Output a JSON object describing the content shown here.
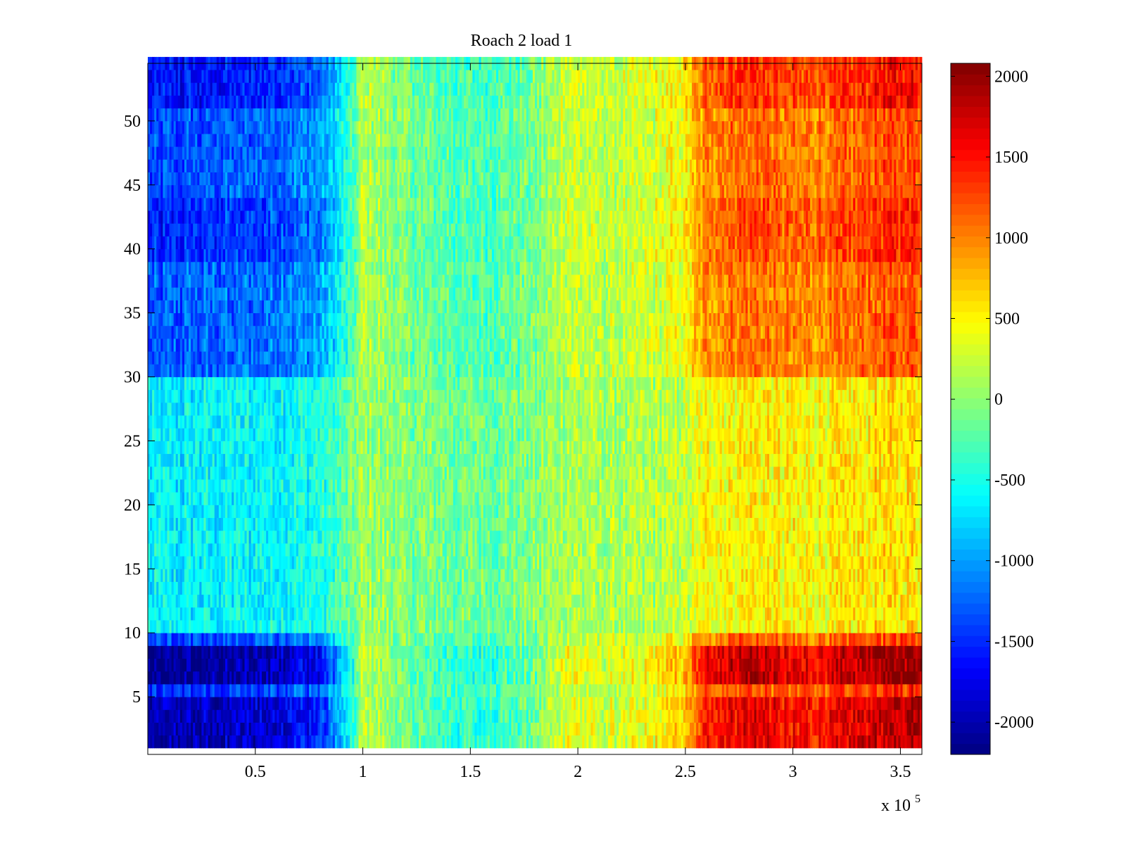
{
  "chart_data": {
    "type": "heatmap",
    "title": "Roach 2 load 1",
    "xlabel": "",
    "ylabel": "",
    "x_multiplier": "x 10",
    "x_multiplier_exponent": "5",
    "xlim": [
      0,
      3.6
    ],
    "ylim": [
      0.5,
      54.5
    ],
    "x_ticks": [
      {
        "value": 0.5,
        "label": "0.5"
      },
      {
        "value": 1.0,
        "label": "1"
      },
      {
        "value": 1.5,
        "label": "1.5"
      },
      {
        "value": 2.0,
        "label": "2"
      },
      {
        "value": 2.5,
        "label": "2.5"
      },
      {
        "value": 3.0,
        "label": "3"
      },
      {
        "value": 3.5,
        "label": "3.5"
      }
    ],
    "y_ticks": [
      {
        "value": 5,
        "label": "5"
      },
      {
        "value": 10,
        "label": "10"
      },
      {
        "value": 15,
        "label": "15"
      },
      {
        "value": 20,
        "label": "20"
      },
      {
        "value": 25,
        "label": "25"
      },
      {
        "value": 30,
        "label": "30"
      },
      {
        "value": 35,
        "label": "35"
      },
      {
        "value": 40,
        "label": "40"
      },
      {
        "value": 45,
        "label": "45"
      },
      {
        "value": 50,
        "label": "50"
      }
    ],
    "colorbar": {
      "colormap": "jet",
      "clim": [
        -2200,
        2080
      ],
      "ticks": [
        {
          "value": 2000,
          "label": "2000"
        },
        {
          "value": 1500,
          "label": "1500"
        },
        {
          "value": 1000,
          "label": "1000"
        },
        {
          "value": 500,
          "label": "500"
        },
        {
          "value": 0,
          "label": "0"
        },
        {
          "value": -500,
          "label": "-500"
        },
        {
          "value": -1000,
          "label": "-1000"
        },
        {
          "value": -1500,
          "label": "-1500"
        },
        {
          "value": -2000,
          "label": "-2000"
        }
      ]
    },
    "rows": 54,
    "x_profile": {
      "x": [
        0,
        0.5,
        0.8,
        0.95,
        1.0,
        1.2,
        1.5,
        1.8,
        1.95,
        2.1,
        2.3,
        2.5,
        2.6,
        2.8,
        3.0,
        3.2,
        3.4,
        3.6
      ],
      "value": [
        -1200,
        -1100,
        -900,
        -300,
        150,
        -100,
        -250,
        -100,
        250,
        150,
        200,
        400,
        850,
        1000,
        850,
        900,
        1050,
        1100
      ]
    },
    "row_profile": [
      {
        "from": 1,
        "to": 4,
        "scale": 1.7
      },
      {
        "from": 5,
        "to": 5,
        "scale": 1.3
      },
      {
        "from": 6,
        "to": 8,
        "scale": 1.85
      },
      {
        "from": 9,
        "to": 9,
        "scale": 1.2
      },
      {
        "from": 10,
        "to": 29,
        "scale": 0.55
      },
      {
        "from": 30,
        "to": 38,
        "scale": 1.1
      },
      {
        "from": 39,
        "to": 43,
        "scale": 1.3
      },
      {
        "from": 44,
        "to": 50,
        "scale": 1.15
      },
      {
        "from": 51,
        "to": 54,
        "scale": 1.4
      }
    ],
    "noise_amplitude": 280
  }
}
